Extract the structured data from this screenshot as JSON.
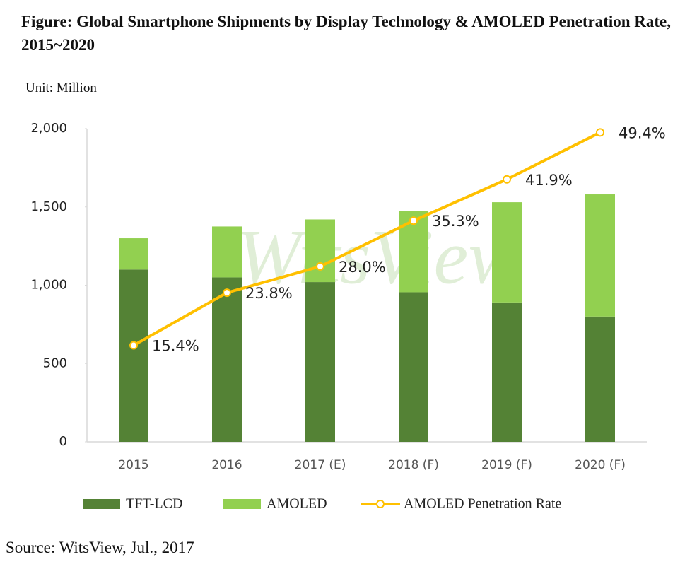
{
  "chart_data": {
    "type": "bar",
    "title": "Figure: Global Smartphone Shipments by Display Technology & AMOLED Penetration Rate, 2015~2020",
    "unit": "Unit: Million",
    "source": "Source: WitsView, Jul., 2017",
    "watermark": "WitsView",
    "stacked": true,
    "categories": [
      "2015",
      "2016",
      "2017 (E)",
      "2018 (F)",
      "2019 (F)",
      "2020 (F)"
    ],
    "series": [
      {
        "name": "TFT-LCD",
        "color": "#548235",
        "values": [
          1100,
          1050,
          1020,
          955,
          890,
          800
        ]
      },
      {
        "name": "AMOLED",
        "color": "#92d050",
        "values": [
          200,
          325,
          400,
          520,
          640,
          780
        ]
      },
      {
        "name": "AMOLED Penetration Rate",
        "type": "line",
        "axis": "y2",
        "color": "#ffc000",
        "values": [
          15.4,
          23.8,
          28.0,
          35.3,
          41.9,
          49.4
        ],
        "value_labels": [
          "15.4%",
          "23.8%",
          "28.0%",
          "35.3%",
          "41.9%",
          "49.4%"
        ]
      }
    ],
    "ylim": [
      0,
      2000
    ],
    "yticks": [
      0,
      500,
      {
        "value": 1000,
        "label": "1,000"
      },
      {
        "value": 1500,
        "label": "1,500"
      },
      {
        "value": 2000,
        "label": "2,000"
      }
    ],
    "y2lim": [
      0,
      50
    ],
    "grid": false,
    "legend": "bottom"
  }
}
